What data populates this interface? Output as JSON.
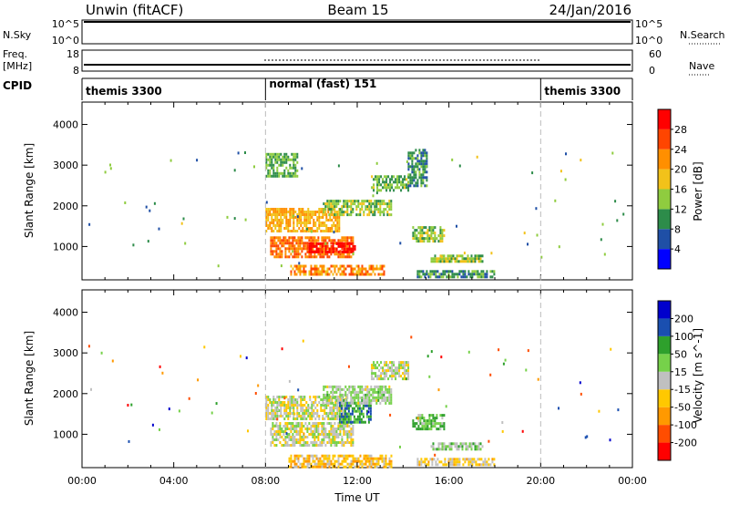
{
  "header": {
    "radar": "Unwin (fitACF)",
    "beam": "Beam 15",
    "date": "24/Jan/2016"
  },
  "summary": {
    "nsky_label": "N.Sky",
    "nsky_ticks": [
      "10^5",
      "10^0"
    ],
    "nsearch_label": "N.Search",
    "freq_label_1": "Freq.",
    "freq_label_2": "[MHz]",
    "freq_ticks": [
      "18",
      "8"
    ],
    "nave_label": "Nave",
    "nave_ticks": [
      "60",
      "0"
    ],
    "cpid_label": "CPID"
  },
  "cpid_segments": [
    {
      "label": "themis 3300",
      "start_hour": 0,
      "end_hour": 8
    },
    {
      "label": "normal (fast) 151",
      "start_hour": 8,
      "end_hour": 20
    },
    {
      "label": "themis 3300",
      "start_hour": 20,
      "end_hour": 24
    }
  ],
  "chart_data": [
    {
      "type": "heatmap",
      "name": "power",
      "ylabel": "Slant Range [km]",
      "xlim": [
        0,
        24
      ],
      "ylim": [
        180,
        4550
      ],
      "y_ticks": [
        "1000",
        "2000",
        "3000",
        "4000"
      ],
      "colorbar": {
        "label": "Power [dB]",
        "ticks": [
          "28",
          "24",
          "20",
          "16",
          "12",
          "8",
          "4"
        ],
        "colors": [
          "#0000ff",
          "#1f4fa6",
          "#2d8c4a",
          "#8fcc3f",
          "#f2c21a",
          "#ff8f00",
          "#ff4500",
          "#ff0000"
        ],
        "range": [
          0,
          32
        ]
      },
      "regions": [
        {
          "x": [
            8.0,
            11.2
          ],
          "y": [
            1400,
            1950
          ],
          "value": 20
        },
        {
          "x": [
            8.2,
            11.8
          ],
          "y": [
            750,
            1250
          ],
          "value": 24
        },
        {
          "x": [
            9.8,
            11.9
          ],
          "y": [
            850,
            1100
          ],
          "value": 30
        },
        {
          "x": [
            9.0,
            13.2
          ],
          "y": [
            300,
            550
          ],
          "value": 22
        },
        {
          "x": [
            10.5,
            13.5
          ],
          "y": [
            1750,
            2150
          ],
          "value": 14
        },
        {
          "x": [
            12.6,
            14.2
          ],
          "y": [
            2350,
            2750
          ],
          "value": 13
        },
        {
          "x": [
            14.2,
            15.0
          ],
          "y": [
            2500,
            3400
          ],
          "value": 9
        },
        {
          "x": [
            14.4,
            15.8
          ],
          "y": [
            1100,
            1500
          ],
          "value": 14
        },
        {
          "x": [
            15.2,
            17.5
          ],
          "y": [
            600,
            800
          ],
          "value": 14
        },
        {
          "x": [
            14.6,
            18.0
          ],
          "y": [
            230,
            420
          ],
          "value": 10
        },
        {
          "x": [
            8.0,
            9.4
          ],
          "y": [
            2700,
            3300
          ],
          "value": 12
        }
      ]
    },
    {
      "type": "heatmap",
      "name": "velocity",
      "ylabel": "Slant Range [km]",
      "xlabel": "Time UT",
      "xlim": [
        0,
        24
      ],
      "ylim": [
        180,
        4550
      ],
      "y_ticks": [
        "1000",
        "2000",
        "3000",
        "4000"
      ],
      "x_ticks": [
        "00:00",
        "04:00",
        "08:00",
        "12:00",
        "16:00",
        "20:00",
        "00:00"
      ],
      "colorbar": {
        "label": "Velocity [m s^-1]",
        "ticks": [
          "200",
          "100",
          "50",
          "15",
          "-15",
          "-50",
          "-100",
          "-200"
        ],
        "colors": [
          "#ff0000",
          "#ff4d00",
          "#ff9900",
          "#ffc800",
          "#c0c0c0",
          "#76d14a",
          "#2ea02c",
          "#1a4fb0",
          "#0000cc"
        ],
        "range": [
          -250,
          250
        ]
      },
      "regions": [
        {
          "x": [
            8.0,
            11.5
          ],
          "y": [
            1400,
            1950
          ],
          "value": 0
        },
        {
          "x": [
            8.2,
            11.8
          ],
          "y": [
            700,
            1300
          ],
          "value": 0
        },
        {
          "x": [
            11.2,
            12.6
          ],
          "y": [
            1300,
            1800
          ],
          "value": 120
        },
        {
          "x": [
            10.5,
            13.5
          ],
          "y": [
            1750,
            2200
          ],
          "value": 30
        },
        {
          "x": [
            12.6,
            14.2
          ],
          "y": [
            2350,
            2800
          ],
          "value": 5
        },
        {
          "x": [
            14.4,
            15.8
          ],
          "y": [
            1100,
            1500
          ],
          "value": 80
        },
        {
          "x": [
            15.2,
            17.5
          ],
          "y": [
            600,
            800
          ],
          "value": 40
        },
        {
          "x": [
            9.0,
            13.5
          ],
          "y": [
            230,
            500
          ],
          "value": -60
        },
        {
          "x": [
            14.6,
            18.0
          ],
          "y": [
            230,
            420
          ],
          "value": -40
        }
      ]
    }
  ]
}
